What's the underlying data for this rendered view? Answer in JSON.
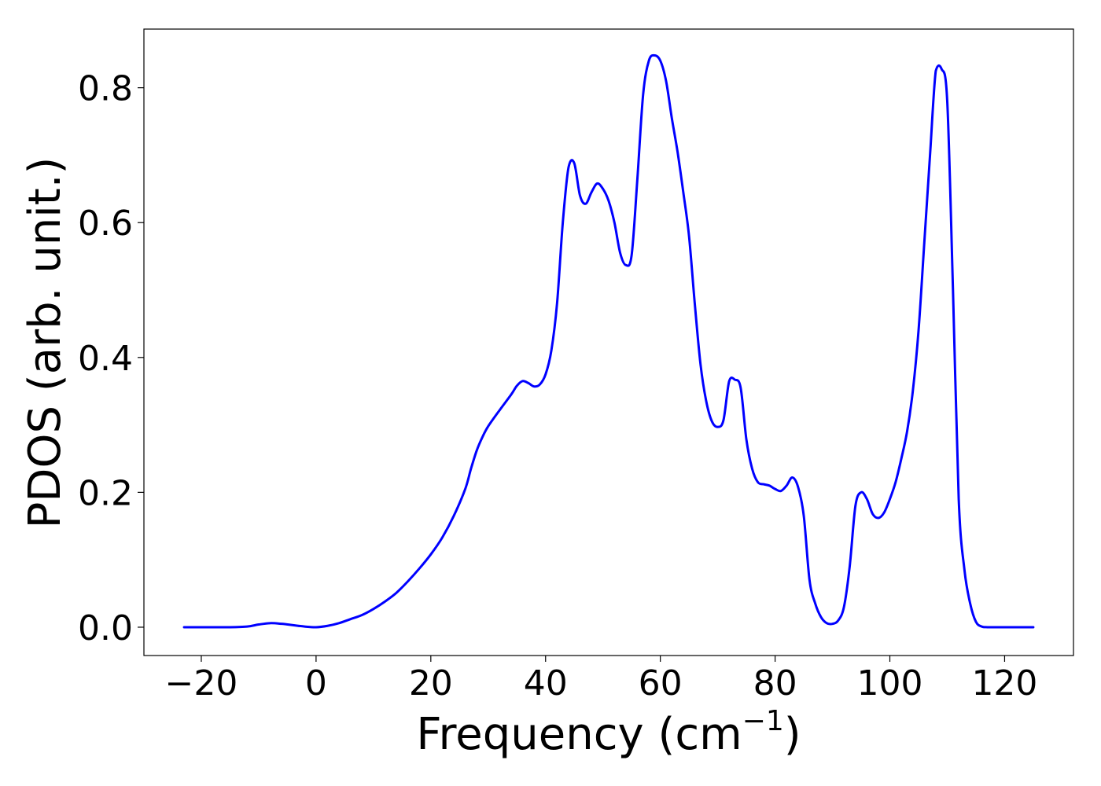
{
  "chart_data": {
    "type": "line",
    "title": "",
    "xlabel": "Frequency (cm",
    "xlabel_superscript": "−1",
    "xlabel_close": ")",
    "ylabel": "PDOS (arb. unit.)",
    "xlim": [
      -30,
      132
    ],
    "ylim": [
      -0.042,
      0.887
    ],
    "x_ticks": [
      -20,
      0,
      20,
      40,
      60,
      80,
      100,
      120
    ],
    "x_tick_labels": [
      "−20",
      "0",
      "20",
      "40",
      "60",
      "80",
      "100",
      "120"
    ],
    "y_ticks": [
      0.0,
      0.2,
      0.4,
      0.6,
      0.8
    ],
    "y_tick_labels": [
      "0.0",
      "0.2",
      "0.4",
      "0.6",
      "0.8"
    ],
    "grid": false,
    "legend": "none",
    "series": [
      {
        "color": "#0000ff",
        "x": [
          -23,
          -20,
          -15,
          -12,
          -10,
          -8,
          -6,
          -4,
          -2,
          0,
          2,
          4,
          6,
          8,
          10,
          12,
          14,
          16,
          18,
          20,
          22,
          24,
          26,
          27,
          28,
          29,
          30,
          32,
          34,
          35,
          36,
          37,
          38,
          39,
          40,
          41,
          42,
          43,
          44,
          45,
          46,
          47,
          48,
          49,
          50,
          51,
          52,
          53,
          54,
          55,
          56,
          57,
          58,
          59,
          60,
          61,
          62,
          63,
          64,
          65,
          66,
          67,
          68,
          69,
          70,
          71,
          72,
          73,
          74,
          75,
          76,
          77,
          78,
          79,
          80,
          81,
          82,
          83,
          84,
          85,
          86,
          87,
          88,
          89,
          90,
          91,
          92,
          93,
          94,
          95,
          96,
          97,
          98,
          99,
          100,
          101,
          102,
          103,
          104,
          105,
          106,
          107,
          108,
          109,
          110,
          111,
          112,
          113,
          114,
          115,
          116,
          117,
          118,
          120,
          125
        ],
        "y": [
          0.0,
          0.0,
          0.0,
          0.001,
          0.004,
          0.006,
          0.005,
          0.003,
          0.001,
          0.0,
          0.002,
          0.006,
          0.012,
          0.018,
          0.027,
          0.038,
          0.051,
          0.068,
          0.087,
          0.108,
          0.133,
          0.165,
          0.205,
          0.235,
          0.262,
          0.282,
          0.298,
          0.322,
          0.345,
          0.358,
          0.365,
          0.362,
          0.357,
          0.36,
          0.375,
          0.41,
          0.48,
          0.6,
          0.682,
          0.688,
          0.64,
          0.628,
          0.645,
          0.658,
          0.65,
          0.632,
          0.6,
          0.555,
          0.537,
          0.552,
          0.665,
          0.79,
          0.84,
          0.848,
          0.84,
          0.81,
          0.755,
          0.705,
          0.645,
          0.58,
          0.48,
          0.39,
          0.335,
          0.305,
          0.297,
          0.307,
          0.365,
          0.367,
          0.355,
          0.278,
          0.235,
          0.215,
          0.212,
          0.21,
          0.205,
          0.202,
          0.21,
          0.222,
          0.208,
          0.165,
          0.07,
          0.035,
          0.015,
          0.006,
          0.005,
          0.01,
          0.03,
          0.09,
          0.18,
          0.2,
          0.19,
          0.168,
          0.162,
          0.17,
          0.19,
          0.215,
          0.25,
          0.29,
          0.35,
          0.44,
          0.57,
          0.7,
          0.825,
          0.828,
          0.78,
          0.5,
          0.19,
          0.085,
          0.035,
          0.008,
          0.001,
          0.0,
          0.0,
          0.0,
          0.0
        ]
      }
    ]
  }
}
